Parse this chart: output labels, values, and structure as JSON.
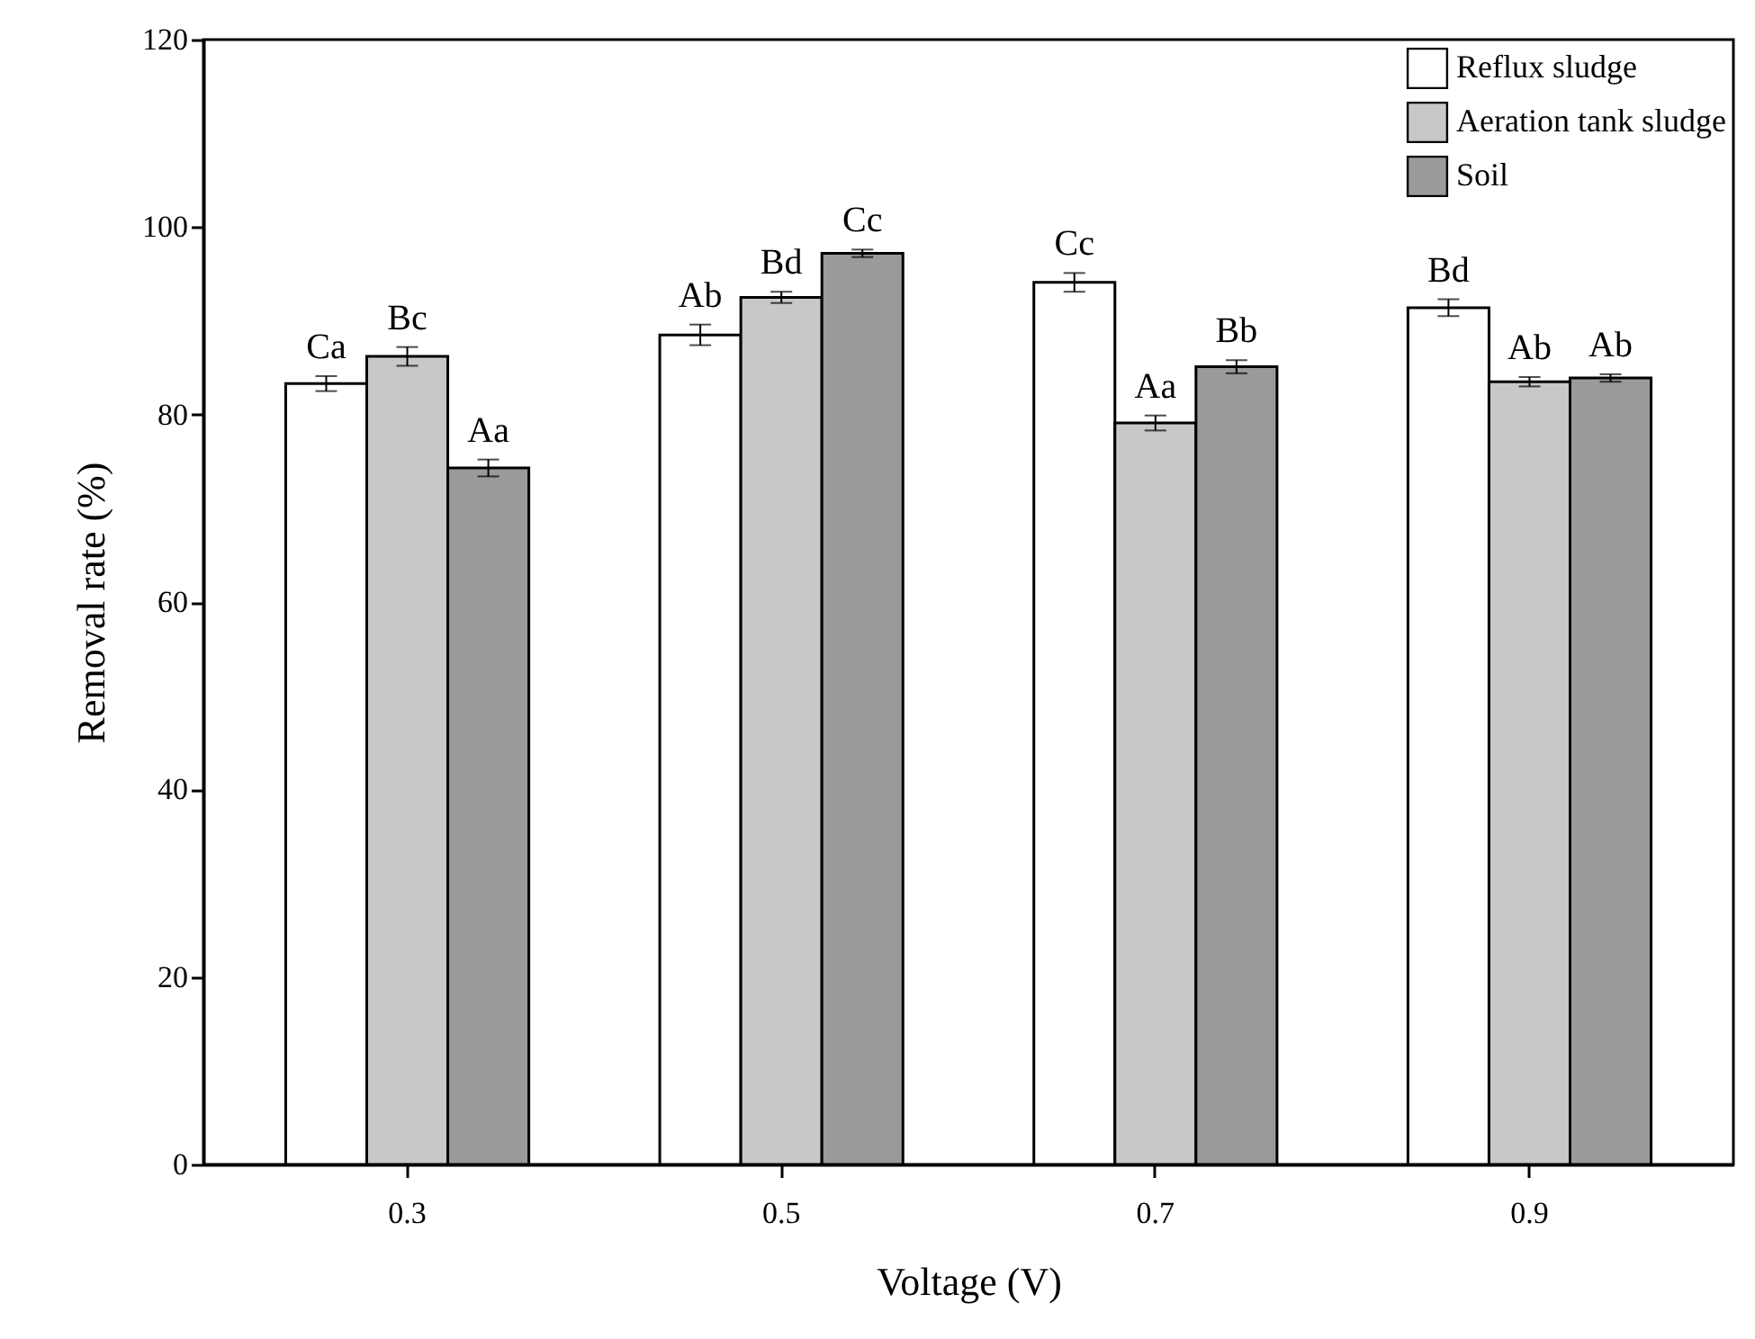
{
  "chart_data": {
    "type": "bar",
    "xlabel": "Voltage (V)",
    "ylabel": "Removal rate (%)",
    "categories": [
      "0.3",
      "0.5",
      "0.7",
      "0.9"
    ],
    "series": [
      {
        "name": "Reflux sludge",
        "color": "#ffffff",
        "values": [
          83.3,
          88.5,
          94.1,
          91.4
        ],
        "errors": [
          0.8,
          1.1,
          1.0,
          0.9
        ],
        "value_labels": [
          "Ca",
          "Ab",
          "Cc",
          "Bd"
        ]
      },
      {
        "name": "Aeration tank sludge",
        "color": "#c8c8c8",
        "values": [
          86.2,
          92.5,
          79.1,
          83.5
        ],
        "errors": [
          1.0,
          0.6,
          0.8,
          0.5
        ],
        "value_labels": [
          "Bc",
          "Bd",
          "Aa",
          "Ab"
        ]
      },
      {
        "name": "Soil",
        "color": "#9a9a9a",
        "values": [
          74.3,
          97.2,
          85.1,
          83.9
        ],
        "errors": [
          0.9,
          0.4,
          0.7,
          0.4
        ],
        "value_labels": [
          "Aa",
          "Cc",
          "Bb",
          "Ab"
        ]
      }
    ],
    "ylim": [
      0,
      120
    ],
    "yticks": [
      0,
      20,
      40,
      60,
      80,
      100,
      120
    ],
    "grid": false,
    "legend": "top right"
  }
}
